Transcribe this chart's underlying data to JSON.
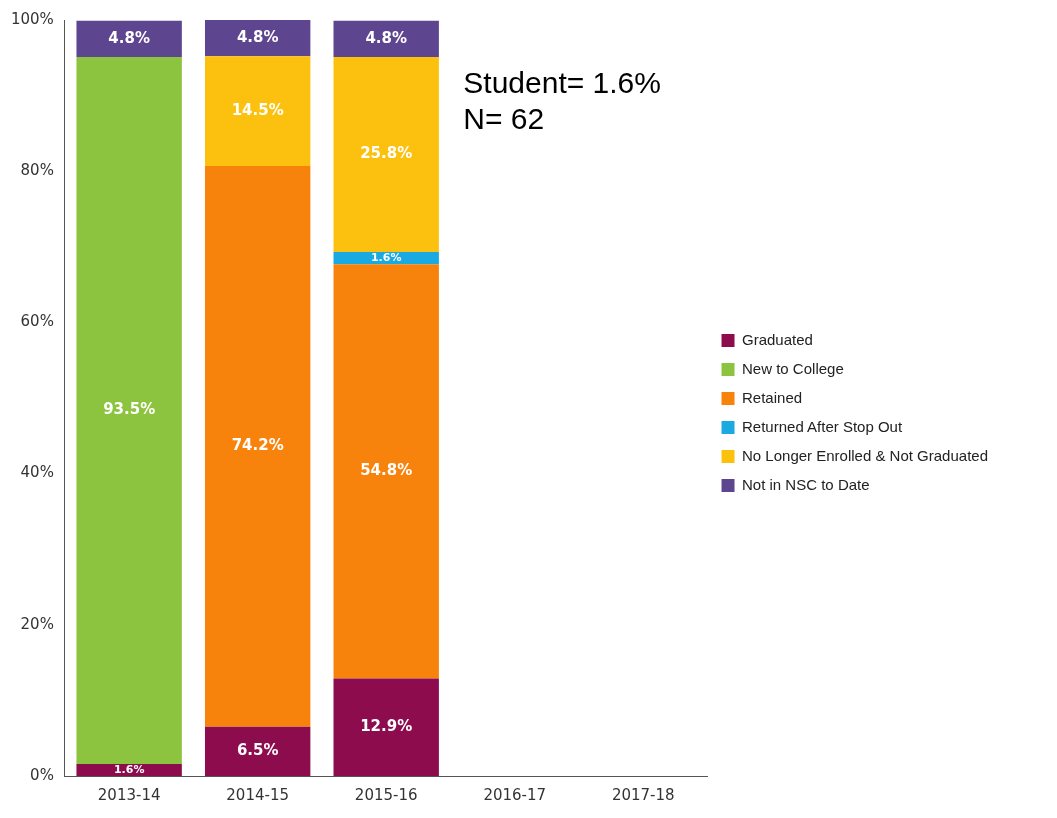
{
  "chart_data": {
    "type": "bar",
    "stacked": true,
    "categories": [
      "2013-14",
      "2014-15",
      "2015-16",
      "2016-17",
      "2017-18"
    ],
    "series": [
      {
        "name": "Graduated",
        "color": "#8c0c4e",
        "values": [
          1.6,
          6.5,
          12.9,
          null,
          null
        ]
      },
      {
        "name": "New to College",
        "color": "#8cc43f",
        "values": [
          93.5,
          null,
          null,
          null,
          null
        ]
      },
      {
        "name": "Retained",
        "color": "#f7830c",
        "values": [
          null,
          74.2,
          54.8,
          null,
          null
        ]
      },
      {
        "name": "Returned After Stop Out",
        "color": "#1ba9e1",
        "values": [
          null,
          null,
          1.6,
          null,
          null
        ]
      },
      {
        "name": "No Longer Enrolled & Not Graduated",
        "color": "#fcc10e",
        "values": [
          null,
          14.5,
          25.8,
          null,
          null
        ]
      },
      {
        "name": "Not in NSC to Date",
        "color": "#5e4590",
        "values": [
          4.8,
          4.8,
          4.8,
          null,
          null
        ]
      }
    ],
    "ylim": [
      0,
      100
    ],
    "yticks": [
      {
        "value": 0,
        "label": "0%"
      },
      {
        "value": 20,
        "label": "20%"
      },
      {
        "value": 40,
        "label": "40%"
      },
      {
        "value": 60,
        "label": "60%"
      },
      {
        "value": 80,
        "label": "80%"
      },
      {
        "value": 100,
        "label": "100%"
      }
    ],
    "value_labels": [
      [
        "1.6%",
        "6.5%",
        "12.9%",
        null,
        null
      ],
      [
        "93.5%",
        null,
        null,
        null,
        null
      ],
      [
        null,
        "74.2%",
        "54.8%",
        null,
        null
      ],
      [
        null,
        null,
        "1.6%",
        null,
        null
      ],
      [
        null,
        "14.5%",
        "25.8%",
        null,
        null
      ],
      [
        "4.8%",
        "4.8%",
        "4.8%",
        null,
        null
      ]
    ],
    "annotations": [
      "Student= 1.6%",
      "N= 62"
    ],
    "grid": false,
    "legend": "right"
  }
}
